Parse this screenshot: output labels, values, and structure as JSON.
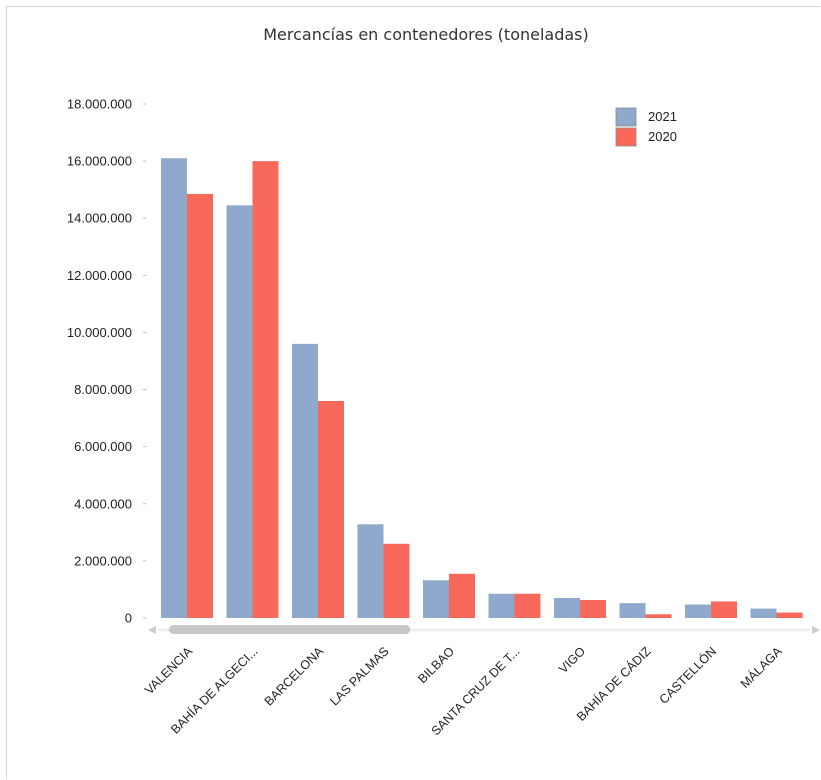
{
  "chart_data": {
    "type": "bar",
    "title": "Mercancías en contenedores (toneladas)",
    "xlabel": "",
    "ylabel": "",
    "ylim": [
      0,
      18000000
    ],
    "yticks": [
      0,
      2000000,
      4000000,
      6000000,
      8000000,
      10000000,
      12000000,
      14000000,
      16000000,
      18000000
    ],
    "ytick_labels": [
      "0",
      "2.000.000",
      "4.000.000",
      "6.000.000",
      "8.000.000",
      "10.000.000",
      "12.000.000",
      "14.000.000",
      "16.000.000",
      "18.000.000"
    ],
    "categories": [
      "VALENCIA",
      "BAHÍA DE ALGECI...",
      "BARCELONA",
      "LAS PALMAS",
      "BILBAO",
      "SANTA CRUZ DE T...",
      "VIGO",
      "BAHÍA DE CÁDIZ",
      "CASTELLÓN",
      "MÁLAGA"
    ],
    "series": [
      {
        "name": "2021",
        "color": "#8ea9cb",
        "values": [
          16100000,
          14450000,
          9600000,
          3280000,
          1320000,
          850000,
          700000,
          520000,
          470000,
          330000
        ]
      },
      {
        "name": "2020",
        "color": "#f8695b",
        "values": [
          14850000,
          16000000,
          7600000,
          2600000,
          1550000,
          850000,
          630000,
          130000,
          580000,
          190000
        ]
      }
    ],
    "grid": false,
    "legend_position": "top-right",
    "scrollbar": {
      "visible_fraction": 0.37
    }
  }
}
